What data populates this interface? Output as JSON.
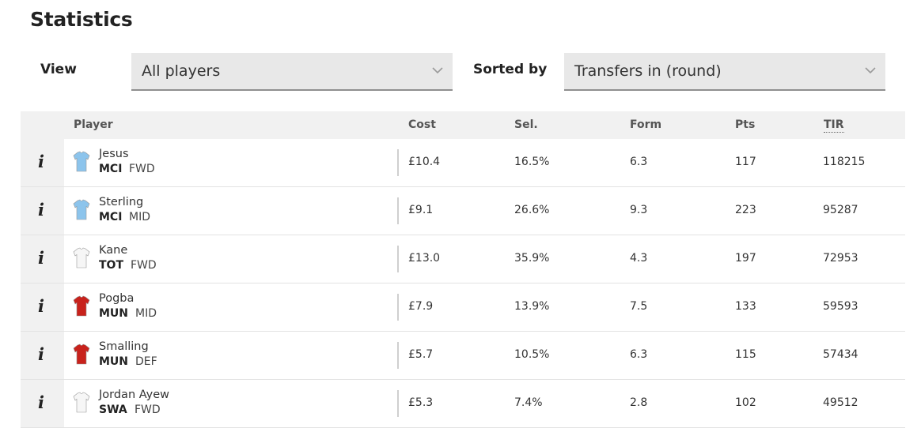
{
  "page_title": "Statistics",
  "filters": {
    "view_label": "View",
    "view_value": "All players",
    "sort_label": "Sorted by",
    "sort_value": "Transfers in (round)"
  },
  "table": {
    "headers": {
      "player": "Player",
      "cost": "Cost",
      "sel": "Sel.",
      "form": "Form",
      "pts": "Pts",
      "tir": "TIR"
    },
    "info_glyph": "i",
    "rows": [
      {
        "name": "Jesus",
        "team": "MCI",
        "pos": "FWD",
        "cost": "£10.4",
        "sel": "16.5%",
        "form": "6.3",
        "pts": "117",
        "tir": "118215",
        "shirt_color": "#8cc4ec",
        "shirt_icon": "mci-shirt-icon"
      },
      {
        "name": "Sterling",
        "team": "MCI",
        "pos": "MID",
        "cost": "£9.1",
        "sel": "26.6%",
        "form": "9.3",
        "pts": "223",
        "tir": "95287",
        "shirt_color": "#8cc4ec",
        "shirt_icon": "mci-shirt-icon"
      },
      {
        "name": "Kane",
        "team": "TOT",
        "pos": "FWD",
        "cost": "£13.0",
        "sel": "35.9%",
        "form": "4.3",
        "pts": "197",
        "tir": "72953",
        "shirt_color": "#f6f6f6",
        "shirt_icon": "tot-shirt-icon"
      },
      {
        "name": "Pogba",
        "team": "MUN",
        "pos": "MID",
        "cost": "£7.9",
        "sel": "13.9%",
        "form": "7.5",
        "pts": "133",
        "tir": "59593",
        "shirt_color": "#c8221c",
        "shirt_icon": "mun-shirt-icon"
      },
      {
        "name": "Smalling",
        "team": "MUN",
        "pos": "DEF",
        "cost": "£5.7",
        "sel": "10.5%",
        "form": "6.3",
        "pts": "115",
        "tir": "57434",
        "shirt_color": "#c8221c",
        "shirt_icon": "mun-shirt-icon"
      },
      {
        "name": "Jordan Ayew",
        "team": "SWA",
        "pos": "FWD",
        "cost": "£5.3",
        "sel": "7.4%",
        "form": "2.8",
        "pts": "102",
        "tir": "49512",
        "shirt_color": "#f6f6f6",
        "shirt_icon": "swa-shirt-icon"
      }
    ]
  }
}
